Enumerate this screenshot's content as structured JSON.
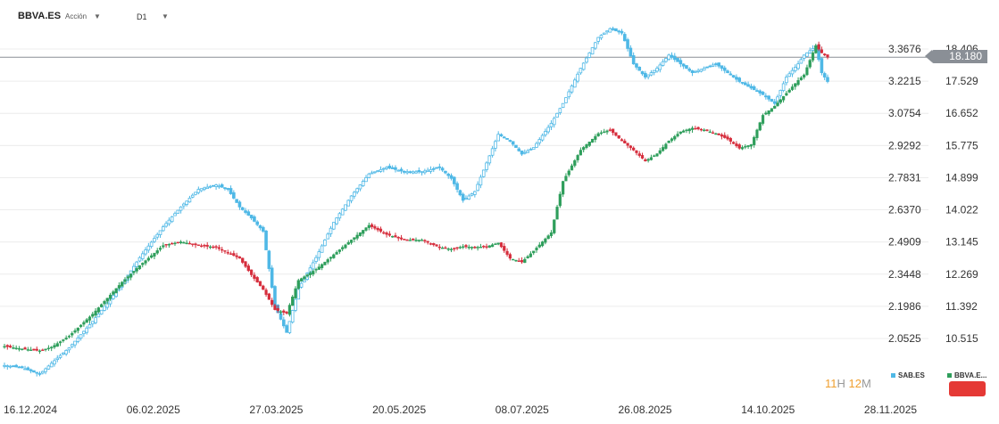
{
  "header": {
    "symbol": "BBVA.ES",
    "type": "Acción",
    "timeframe": "D1"
  },
  "colors": {
    "sab": "#4fb8e6",
    "up": "#2e9e5b",
    "down": "#d62d3c",
    "grid": "#ececec",
    "priceLine": "#8a8f96"
  },
  "timeframes": {
    "h": "11",
    "h_label": "H",
    "m": "12",
    "m_label": "M"
  },
  "legend": {
    "sab": "SAB.ES",
    "bbva": "BBVA.E..."
  },
  "current_price": "18.180",
  "chart_data": {
    "type": "candlestick",
    "left_axis_ticks": [
      "3.3676",
      "3.2215",
      "3.0754",
      "2.9292",
      "2.7831",
      "2.6370",
      "2.4909",
      "2.3448",
      "2.1986",
      "2.0525"
    ],
    "right_axis_ticks": [
      "18.406",
      "17.529",
      "16.652",
      "15.775",
      "14.899",
      "14.022",
      "13.145",
      "12.269",
      "11.392",
      "10.515"
    ],
    "x_ticks": [
      "16.12.2024",
      "06.02.2025",
      "27.03.2025",
      "20.05.2025",
      "08.07.2025",
      "26.08.2025",
      "14.10.2025",
      "28.11.2025"
    ],
    "series": [
      {
        "name": "SAB.ES",
        "anchors": [
          [
            0,
            1.93
          ],
          [
            6,
            1.92
          ],
          [
            12,
            1.89
          ],
          [
            16,
            1.94
          ],
          [
            22,
            2.01
          ],
          [
            30,
            2.13
          ],
          [
            40,
            2.3
          ],
          [
            46,
            2.42
          ],
          [
            54,
            2.56
          ],
          [
            60,
            2.65
          ],
          [
            66,
            2.73
          ],
          [
            72,
            2.75
          ],
          [
            76,
            2.73
          ],
          [
            80,
            2.65
          ],
          [
            84,
            2.6
          ],
          [
            88,
            2.54
          ],
          [
            92,
            2.2
          ],
          [
            96,
            2.08
          ],
          [
            100,
            2.28
          ],
          [
            106,
            2.42
          ],
          [
            112,
            2.58
          ],
          [
            118,
            2.7
          ],
          [
            124,
            2.8
          ],
          [
            130,
            2.83
          ],
          [
            136,
            2.81
          ],
          [
            142,
            2.81
          ],
          [
            148,
            2.83
          ],
          [
            152,
            2.78
          ],
          [
            156,
            2.68
          ],
          [
            160,
            2.72
          ],
          [
            164,
            2.85
          ],
          [
            168,
            2.98
          ],
          [
            172,
            2.95
          ],
          [
            176,
            2.89
          ],
          [
            180,
            2.92
          ],
          [
            186,
            3.03
          ],
          [
            190,
            3.12
          ],
          [
            196,
            3.28
          ],
          [
            202,
            3.42
          ],
          [
            206,
            3.46
          ],
          [
            210,
            3.44
          ],
          [
            214,
            3.3
          ],
          [
            218,
            3.24
          ],
          [
            222,
            3.28
          ],
          [
            226,
            3.34
          ],
          [
            230,
            3.3
          ],
          [
            234,
            3.26
          ],
          [
            238,
            3.28
          ],
          [
            242,
            3.3
          ],
          [
            246,
            3.26
          ],
          [
            250,
            3.22
          ],
          [
            254,
            3.19
          ],
          [
            258,
            3.16
          ],
          [
            262,
            3.12
          ],
          [
            266,
            3.24
          ],
          [
            270,
            3.3
          ],
          [
            272,
            3.34
          ],
          [
            276,
            3.38
          ],
          [
            278,
            3.26
          ],
          [
            280,
            3.22
          ]
        ]
      },
      {
        "name": "BBVA.ES",
        "anchors": [
          [
            0,
            10.3
          ],
          [
            6,
            10.23
          ],
          [
            12,
            10.18
          ],
          [
            16,
            10.28
          ],
          [
            22,
            10.58
          ],
          [
            30,
            11.18
          ],
          [
            40,
            12.05
          ],
          [
            46,
            12.5
          ],
          [
            54,
            13.05
          ],
          [
            60,
            13.15
          ],
          [
            66,
            13.05
          ],
          [
            72,
            13.0
          ],
          [
            76,
            12.85
          ],
          [
            80,
            12.7
          ],
          [
            84,
            12.25
          ],
          [
            88,
            11.85
          ],
          [
            92,
            11.3
          ],
          [
            96,
            11.2
          ],
          [
            100,
            12.1
          ],
          [
            106,
            12.4
          ],
          [
            112,
            12.8
          ],
          [
            118,
            13.2
          ],
          [
            124,
            13.6
          ],
          [
            130,
            13.35
          ],
          [
            136,
            13.2
          ],
          [
            142,
            13.2
          ],
          [
            148,
            13.0
          ],
          [
            152,
            12.95
          ],
          [
            156,
            13.02
          ],
          [
            160,
            13.0
          ],
          [
            164,
            13.02
          ],
          [
            168,
            13.12
          ],
          [
            172,
            12.7
          ],
          [
            176,
            12.6
          ],
          [
            180,
            12.9
          ],
          [
            186,
            13.4
          ],
          [
            190,
            14.8
          ],
          [
            196,
            15.65
          ],
          [
            202,
            16.1
          ],
          [
            206,
            16.2
          ],
          [
            210,
            15.9
          ],
          [
            214,
            15.65
          ],
          [
            218,
            15.35
          ],
          [
            222,
            15.55
          ],
          [
            226,
            15.9
          ],
          [
            230,
            16.15
          ],
          [
            234,
            16.25
          ],
          [
            238,
            16.2
          ],
          [
            242,
            16.1
          ],
          [
            246,
            15.95
          ],
          [
            250,
            15.7
          ],
          [
            254,
            15.8
          ],
          [
            258,
            16.6
          ],
          [
            262,
            16.85
          ],
          [
            266,
            17.2
          ],
          [
            270,
            17.55
          ],
          [
            272,
            17.7
          ],
          [
            276,
            18.5
          ],
          [
            278,
            18.3
          ],
          [
            280,
            18.18
          ]
        ]
      }
    ]
  }
}
